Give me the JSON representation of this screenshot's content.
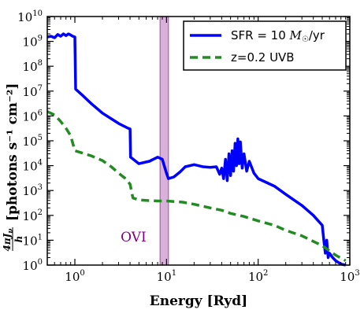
{
  "chart_data": {
    "type": "line",
    "xlabel": "Energy [Ryd]",
    "ylabel_prefix": "4πJ",
    "ylabel_sub": "ν",
    "ylabel_den": "h",
    "ylabel_units": "[photons s⁻¹ cm⁻²]",
    "xscale": "log",
    "yscale": "log",
    "xlim": [
      0.5,
      1000
    ],
    "ylim": [
      1,
      10000000000
    ],
    "x_ticks": [
      {
        "base": "10",
        "exp": "0",
        "value": 1
      },
      {
        "base": "10",
        "exp": "1",
        "value": 10
      },
      {
        "base": "10",
        "exp": "2",
        "value": 100
      },
      {
        "base": "10",
        "exp": "3",
        "value": 1000
      }
    ],
    "y_ticks": [
      {
        "base": "10",
        "exp": "0",
        "value": 1
      },
      {
        "base": "10",
        "exp": "1",
        "value": 10
      },
      {
        "base": "10",
        "exp": "2",
        "value": 100
      },
      {
        "base": "10",
        "exp": "3",
        "value": 1000
      },
      {
        "base": "10",
        "exp": "4",
        "value": 10000
      },
      {
        "base": "10",
        "exp": "5",
        "value": 100000
      },
      {
        "base": "10",
        "exp": "6",
        "value": 1000000
      },
      {
        "base": "10",
        "exp": "7",
        "value": 10000000
      },
      {
        "base": "10",
        "exp": "8",
        "value": 100000000
      },
      {
        "base": "10",
        "exp": "9",
        "value": 1000000000
      },
      {
        "base": "10",
        "exp": "10",
        "value": 10000000000
      }
    ],
    "band": {
      "x_range": [
        8.5,
        10.5
      ],
      "label": "OVI",
      "color": "#c07bc0",
      "label_color": "#800080"
    },
    "legend_position": "top-right",
    "series": [
      {
        "name": "SFR = 10 M☉/yr",
        "name_prefix": "SFR = 10 ",
        "name_symbol": "M",
        "name_sub": "☉",
        "name_suffix": "/yr",
        "color": "#0000ff",
        "style": "solid",
        "points": [
          [
            0.5,
            1500000000.0
          ],
          [
            0.55,
            1600000000.0
          ],
          [
            0.6,
            1400000000.0
          ],
          [
            0.65,
            1900000000.0
          ],
          [
            0.7,
            1600000000.0
          ],
          [
            0.75,
            2000000000.0
          ],
          [
            0.8,
            1700000000.0
          ],
          [
            0.85,
            2000000000.0
          ],
          [
            0.9,
            1800000000.0
          ],
          [
            0.95,
            1600000000.0
          ],
          [
            1.0,
            1500000000.0
          ],
          [
            1.02,
            12000000.0
          ],
          [
            1.2,
            7000000.0
          ],
          [
            1.5,
            3200000.0
          ],
          [
            2.0,
            1300000.0
          ],
          [
            3.0,
            500000.0
          ],
          [
            3.8,
            320000.0
          ],
          [
            4.0,
            300000.0
          ],
          [
            4.05,
            22000.0
          ],
          [
            5.0,
            12000.0
          ],
          [
            6.5,
            15000.0
          ],
          [
            8.0,
            22000.0
          ],
          [
            9.0,
            18000.0
          ],
          [
            10.0,
            5000.0
          ],
          [
            10.5,
            3000.0
          ],
          [
            12.0,
            3500.0
          ],
          [
            14.0,
            5500.0
          ],
          [
            16.0,
            9000.0
          ],
          [
            20.0,
            11000.0
          ],
          [
            25.0,
            9000.0
          ],
          [
            30.0,
            8500.0
          ],
          [
            35.0,
            9000.0
          ],
          [
            38.0,
            4500.0
          ],
          [
            40.0,
            8000.0
          ],
          [
            42.0,
            3000.0
          ],
          [
            44.0,
            18000.0
          ],
          [
            46.0,
            2500.0
          ],
          [
            48.0,
            30000.0
          ],
          [
            50.0,
            4000.0
          ],
          [
            52.0,
            40000.0
          ],
          [
            54.0,
            6000.0
          ],
          [
            56.0,
            80000.0
          ],
          [
            58.0,
            10000.0
          ],
          [
            60.0,
            120000.0
          ],
          [
            62.0,
            12000.0
          ],
          [
            64.0,
            90000.0
          ],
          [
            67.0,
            8000.0
          ],
          [
            70.0,
            30000.0
          ],
          [
            75.0,
            6000.0
          ],
          [
            80.0,
            15000.0
          ],
          [
            90.0,
            5000.0
          ],
          [
            100.0,
            3000.0
          ],
          [
            150.0,
            1500.0
          ],
          [
            200.0,
            700
          ],
          [
            300.0,
            250
          ],
          [
            400.0,
            100
          ],
          [
            500.0,
            40
          ],
          [
            520.0,
            10
          ],
          [
            540.0,
            3
          ],
          [
            560.0,
            10
          ],
          [
            580.0,
            2
          ],
          [
            600.0,
            3
          ],
          [
            650.0,
            2
          ],
          [
            700.0,
            1.5
          ],
          [
            800.0,
            1.1
          ],
          [
            900.0,
            1.0
          ]
        ]
      },
      {
        "name": "z=0.2 UVB",
        "color": "#228b22",
        "style": "dashed",
        "points": [
          [
            0.5,
            1500000.0
          ],
          [
            0.6,
            1100000.0
          ],
          [
            0.7,
            600000.0
          ],
          [
            0.8,
            320000.0
          ],
          [
            0.9,
            160000.0
          ],
          [
            1.0,
            40000.0
          ],
          [
            1.5,
            25000.0
          ],
          [
            2.0,
            16000.0
          ],
          [
            2.5,
            9000.0
          ],
          [
            3.0,
            5000.0
          ],
          [
            3.5,
            3200.0
          ],
          [
            4.0,
            1800.0
          ],
          [
            4.3,
            500
          ],
          [
            5.0,
            420
          ],
          [
            6.0,
            400
          ],
          [
            8.0,
            380
          ],
          [
            10.0,
            380
          ],
          [
            15.0,
            340
          ],
          [
            20.0,
            280
          ],
          [
            30.0,
            200
          ],
          [
            40.0,
            160
          ],
          [
            50.0,
            120
          ],
          [
            70.0,
            90
          ],
          [
            100.0,
            60
          ],
          [
            150.0,
            40
          ],
          [
            200.0,
            25
          ],
          [
            300.0,
            15
          ],
          [
            500.0,
            6
          ],
          [
            700.0,
            2.5
          ],
          [
            900.0,
            1.5
          ]
        ]
      }
    ]
  }
}
